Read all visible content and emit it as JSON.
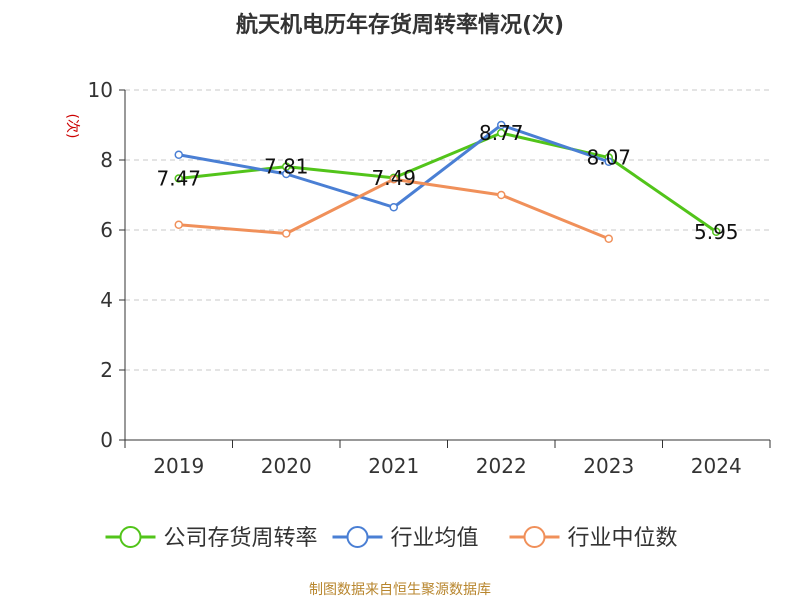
{
  "chart_data": {
    "type": "line",
    "title": "航天机电历年存货周转率情况(次)",
    "ylabel": "(次)",
    "xlabel": "",
    "categories": [
      "2019",
      "2020",
      "2021",
      "2022",
      "2023",
      "2024"
    ],
    "ylim": [
      0,
      10
    ],
    "yticks": [
      0,
      2,
      4,
      6,
      8,
      10
    ],
    "grid": "horizontal dashed",
    "legend_position": "bottom",
    "series": [
      {
        "name": "公司存货周转率",
        "color": "#52c41a",
        "values": [
          7.47,
          7.81,
          7.49,
          8.77,
          8.07,
          5.95
        ],
        "labels": [
          "7.47",
          "7.81",
          "7.49",
          "8.77",
          "8.07",
          "5.95"
        ]
      },
      {
        "name": "行业均值",
        "color": "#4a7fd4",
        "values": [
          8.15,
          7.6,
          6.65,
          9.0,
          7.95,
          null
        ]
      },
      {
        "name": "行业中位数",
        "color": "#f0905a",
        "values": [
          6.15,
          5.9,
          7.45,
          7.0,
          5.75,
          null
        ]
      }
    ]
  },
  "source": "制图数据来自恒生聚源数据库"
}
